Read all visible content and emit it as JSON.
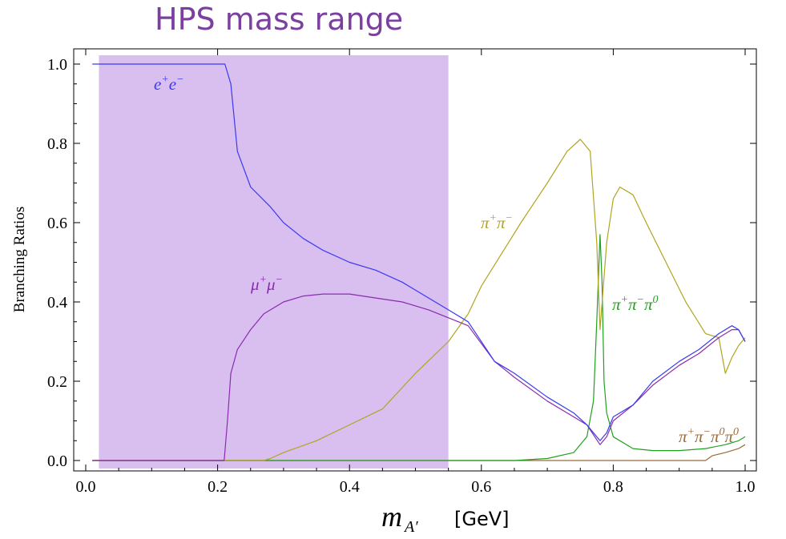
{
  "title": "HPS mass range",
  "chart_data": {
    "type": "line",
    "ylabel": "Branching Ratios",
    "xlabel": {
      "symbol": "m",
      "subscript": "A′",
      "unit": "[GeV]"
    },
    "xlim": [
      0.0,
      1.0
    ],
    "ylim": [
      0.0,
      1.0
    ],
    "xticks": [
      "0.0",
      "0.2",
      "0.4",
      "0.6",
      "0.8",
      "1.0"
    ],
    "yticks": [
      "0.0",
      "0.2",
      "0.4",
      "0.6",
      "0.8",
      "1.0"
    ],
    "highlight_region": {
      "x": [
        0.02,
        0.55
      ],
      "color": "#d9bef0"
    },
    "series": [
      {
        "name": "e⁺e⁻",
        "color": "#3a3af0",
        "x": [
          0.01,
          0.211,
          0.22,
          0.23,
          0.25,
          0.28,
          0.3,
          0.33,
          0.36,
          0.4,
          0.44,
          0.48,
          0.52,
          0.55,
          0.58,
          0.62,
          0.65,
          0.7,
          0.74,
          0.76,
          0.78,
          0.79,
          0.8,
          0.83,
          0.86,
          0.9,
          0.93,
          0.96,
          0.98,
          0.99,
          1.0
        ],
        "values": [
          1.0,
          1.0,
          0.95,
          0.78,
          0.69,
          0.64,
          0.6,
          0.56,
          0.53,
          0.5,
          0.48,
          0.45,
          0.41,
          0.38,
          0.35,
          0.25,
          0.22,
          0.16,
          0.12,
          0.09,
          0.05,
          0.07,
          0.11,
          0.14,
          0.2,
          0.25,
          0.28,
          0.32,
          0.34,
          0.33,
          0.3
        ]
      },
      {
        "name": "μ⁺μ⁻",
        "color": "#8a2bb0",
        "x": [
          0.01,
          0.21,
          0.215,
          0.22,
          0.23,
          0.25,
          0.27,
          0.3,
          0.33,
          0.36,
          0.4,
          0.44,
          0.48,
          0.52,
          0.55,
          0.58,
          0.62,
          0.65,
          0.7,
          0.74,
          0.76,
          0.78,
          0.79,
          0.8,
          0.83,
          0.86,
          0.9,
          0.93,
          0.96,
          0.98,
          0.99,
          1.0
        ],
        "values": [
          0.0,
          0.0,
          0.1,
          0.22,
          0.28,
          0.33,
          0.37,
          0.4,
          0.415,
          0.42,
          0.42,
          0.41,
          0.4,
          0.38,
          0.36,
          0.34,
          0.25,
          0.21,
          0.15,
          0.11,
          0.09,
          0.04,
          0.06,
          0.1,
          0.14,
          0.19,
          0.24,
          0.27,
          0.31,
          0.33,
          0.33,
          0.3
        ]
      },
      {
        "name": "π⁺π⁻",
        "color": "#b0a520",
        "x": [
          0.01,
          0.27,
          0.28,
          0.3,
          0.35,
          0.4,
          0.45,
          0.5,
          0.55,
          0.58,
          0.6,
          0.63,
          0.66,
          0.7,
          0.73,
          0.75,
          0.765,
          0.775,
          0.78,
          0.79,
          0.8,
          0.81,
          0.83,
          0.85,
          0.88,
          0.91,
          0.94,
          0.96,
          0.97,
          0.98,
          0.99,
          1.0
        ],
        "values": [
          0.0,
          0.0,
          0.005,
          0.02,
          0.05,
          0.09,
          0.13,
          0.22,
          0.3,
          0.37,
          0.44,
          0.52,
          0.6,
          0.7,
          0.78,
          0.81,
          0.78,
          0.55,
          0.33,
          0.55,
          0.66,
          0.69,
          0.67,
          0.6,
          0.5,
          0.4,
          0.32,
          0.31,
          0.22,
          0.26,
          0.29,
          0.31
        ]
      },
      {
        "name": "π⁺π⁻π⁰",
        "color": "#20a020",
        "x": [
          0.01,
          0.6,
          0.65,
          0.7,
          0.74,
          0.76,
          0.77,
          0.775,
          0.78,
          0.783,
          0.786,
          0.79,
          0.8,
          0.83,
          0.86,
          0.9,
          0.94,
          0.97,
          0.99,
          1.0
        ],
        "values": [
          0.0,
          0.0,
          0.0,
          0.005,
          0.02,
          0.06,
          0.15,
          0.35,
          0.57,
          0.45,
          0.2,
          0.12,
          0.06,
          0.03,
          0.025,
          0.025,
          0.03,
          0.04,
          0.05,
          0.06
        ]
      },
      {
        "name": "π⁺π⁻π⁰π⁰",
        "color": "#9b6a3a",
        "x": [
          0.01,
          0.94,
          0.95,
          0.97,
          0.99,
          1.0
        ],
        "values": [
          0.0,
          0.0,
          0.012,
          0.02,
          0.03,
          0.04
        ]
      }
    ]
  }
}
